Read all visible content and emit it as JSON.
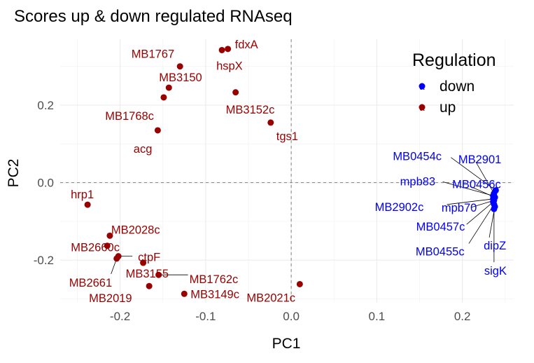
{
  "chart_data": {
    "type": "scatter",
    "title": "Scores up & down regulated RNAseq",
    "xlabel": "PC1",
    "ylabel": "PC2",
    "xlim": [
      -0.27,
      0.26
    ],
    "ylim": [
      -0.31,
      0.37
    ],
    "x_ticks": [
      -0.2,
      -0.1,
      0.0,
      0.1,
      0.2
    ],
    "x_tick_labels": [
      "-0.2",
      "-0.1",
      "0.0",
      "0.1",
      "0.2"
    ],
    "y_ticks": [
      -0.2,
      0.0,
      0.2
    ],
    "y_tick_labels": [
      "-0.2",
      "0.0",
      "0.2"
    ],
    "grid": true,
    "reference_lines": {
      "x": 0.0,
      "y": 0.0,
      "style": "dashed"
    },
    "legend": {
      "title": "Regulation",
      "placement": "top-right",
      "entries": [
        {
          "name": "down",
          "color": "#0000ff",
          "key_glyph": "a"
        },
        {
          "name": "up",
          "color": "#990000",
          "key_glyph": "a"
        }
      ]
    },
    "series": [
      {
        "name": "up",
        "color": "#990000",
        "points": [
          {
            "label": "fdxA",
            "x": -0.074,
            "y": 0.345
          },
          {
            "label": "hspX",
            "x": -0.081,
            "y": 0.342
          },
          {
            "label": "MB1767",
            "x": -0.13,
            "y": 0.3
          },
          {
            "label": "MB3150",
            "x": -0.143,
            "y": 0.245
          },
          {
            "label": "MB3152c",
            "x": -0.065,
            "y": 0.233
          },
          {
            "label": "MB1768c",
            "x": -0.149,
            "y": 0.22
          },
          {
            "label": "tgs1",
            "x": -0.024,
            "y": 0.155
          },
          {
            "label": "acg",
            "x": -0.156,
            "y": 0.135
          },
          {
            "label": "hrp1",
            "x": -0.238,
            "y": -0.057
          },
          {
            "label": "MB2028c",
            "x": -0.212,
            "y": -0.137
          },
          {
            "label": "MB2660c",
            "x": -0.215,
            "y": -0.163
          },
          {
            "label": "ctpF",
            "x": -0.202,
            "y": -0.19
          },
          {
            "label": "MB2661",
            "x": -0.204,
            "y": -0.196
          },
          {
            "label": "MB3155",
            "x": -0.173,
            "y": -0.207
          },
          {
            "label": "MB1762c",
            "x": -0.155,
            "y": -0.238
          },
          {
            "label": "MB2019",
            "x": -0.166,
            "y": -0.267
          },
          {
            "label": "MB3149c",
            "x": -0.125,
            "y": -0.287
          },
          {
            "label": "MB2021c",
            "x": 0.01,
            "y": -0.262
          }
        ]
      },
      {
        "name": "down",
        "color": "#0000ff",
        "points": [
          {
            "label": "MB0454c",
            "x": 0.239,
            "y": -0.02
          },
          {
            "label": "MB2901",
            "x": 0.237,
            "y": -0.028
          },
          {
            "label": "mpb83",
            "x": 0.236,
            "y": -0.034
          },
          {
            "label": "MB0456c",
            "x": 0.238,
            "y": -0.038
          },
          {
            "label": "MB2902c",
            "x": 0.236,
            "y": -0.042
          },
          {
            "label": "mpb70",
            "x": 0.237,
            "y": -0.046
          },
          {
            "label": "MB0457c",
            "x": 0.236,
            "y": -0.05
          },
          {
            "label": "MB0455c",
            "x": 0.237,
            "y": -0.056
          },
          {
            "label": "dipZ",
            "x": 0.238,
            "y": -0.062
          },
          {
            "label": "sigK",
            "x": 0.237,
            "y": -0.068
          }
        ]
      }
    ]
  }
}
